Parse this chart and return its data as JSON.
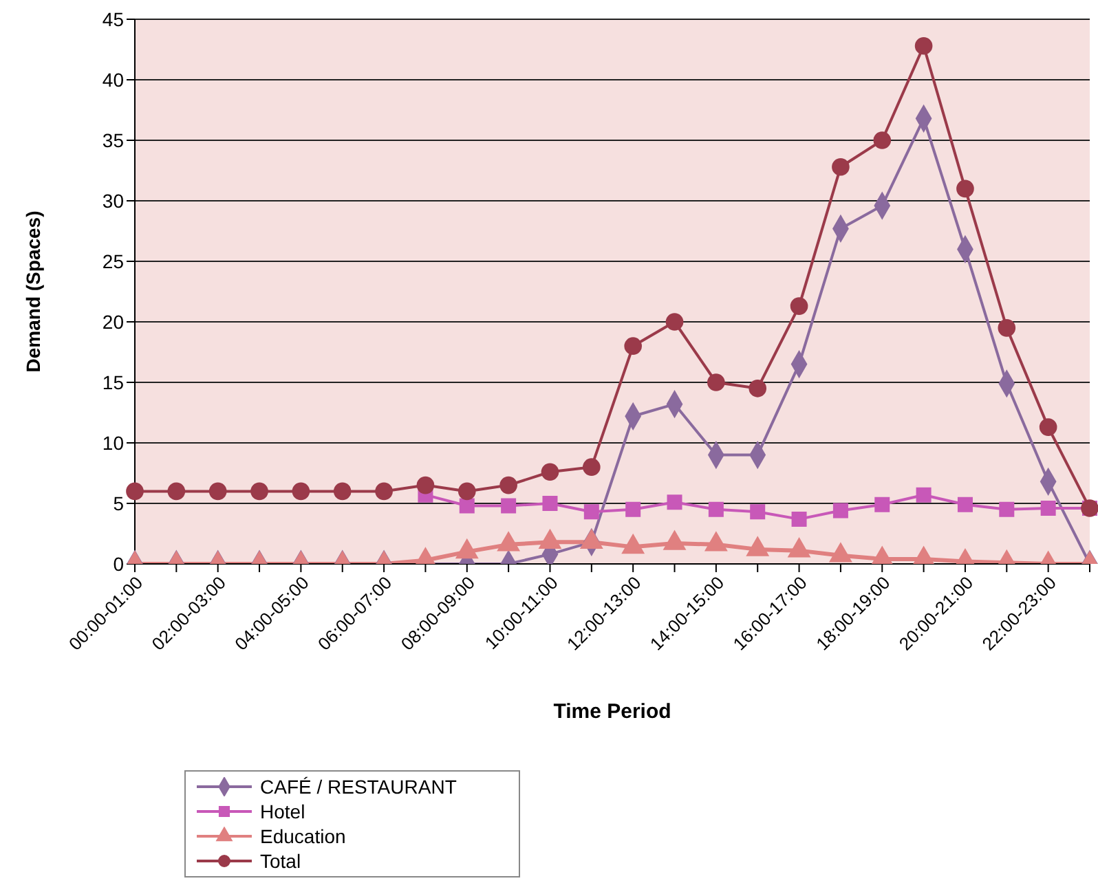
{
  "chart_data": {
    "type": "line",
    "xlabel": "Time Period",
    "ylabel": "Demand (Spaces)",
    "categories": [
      "00:00-01:00",
      null,
      "02:00-03:00",
      null,
      "04:00-05:00",
      null,
      "06:00-07:00",
      null,
      "08:00-09:00",
      null,
      "10:00-11:00",
      null,
      "12:00-13:00",
      null,
      "14:00-15:00",
      null,
      "16:00-17:00",
      null,
      "18:00-19:00",
      null,
      "20:00-21:00",
      null,
      "22:00-23:00",
      null
    ],
    "series": [
      {
        "name": "CAFÉ / RESTAURANT",
        "color": "#8a6a9e",
        "marker": "diamond",
        "values": [
          0,
          0,
          0,
          0,
          0,
          0,
          0,
          0,
          0,
          0,
          0.8,
          1.8,
          12.2,
          13.2,
          9,
          9,
          16.5,
          27.7,
          29.6,
          36.8,
          26,
          14.9,
          6.8,
          0
        ]
      },
      {
        "name": "Hotel",
        "color": "#c858b8",
        "marker": "square",
        "values": [
          null,
          null,
          null,
          null,
          null,
          null,
          null,
          5.7,
          4.8,
          4.8,
          5,
          4.3,
          4.5,
          5.1,
          4.5,
          4.3,
          3.7,
          4.4,
          4.9,
          5.7,
          4.9,
          4.5,
          4.6,
          4.6
        ]
      },
      {
        "name": "Education",
        "color": "#e08080",
        "marker": "triangle",
        "values": [
          0,
          0,
          0,
          0,
          0,
          0,
          0,
          0.3,
          1,
          1.6,
          1.8,
          1.8,
          1.4,
          1.7,
          1.6,
          1.2,
          1.1,
          0.7,
          0.4,
          0.4,
          0.2,
          0.1,
          0,
          0
        ]
      },
      {
        "name": "Total",
        "color": "#9b3a4a",
        "marker": "circle",
        "values": [
          6,
          6,
          6,
          6,
          6,
          6,
          6,
          6.5,
          6,
          6.5,
          7.6,
          8,
          18,
          20,
          15,
          14.5,
          21.3,
          32.8,
          35,
          42.8,
          31,
          19.5,
          11.3,
          4.6
        ]
      }
    ],
    "ylim": [
      0,
      45
    ],
    "yticks": [
      0,
      5,
      10,
      15,
      20,
      25,
      30,
      35,
      40,
      45
    ],
    "grid": "y",
    "legend": "bottom left"
  }
}
